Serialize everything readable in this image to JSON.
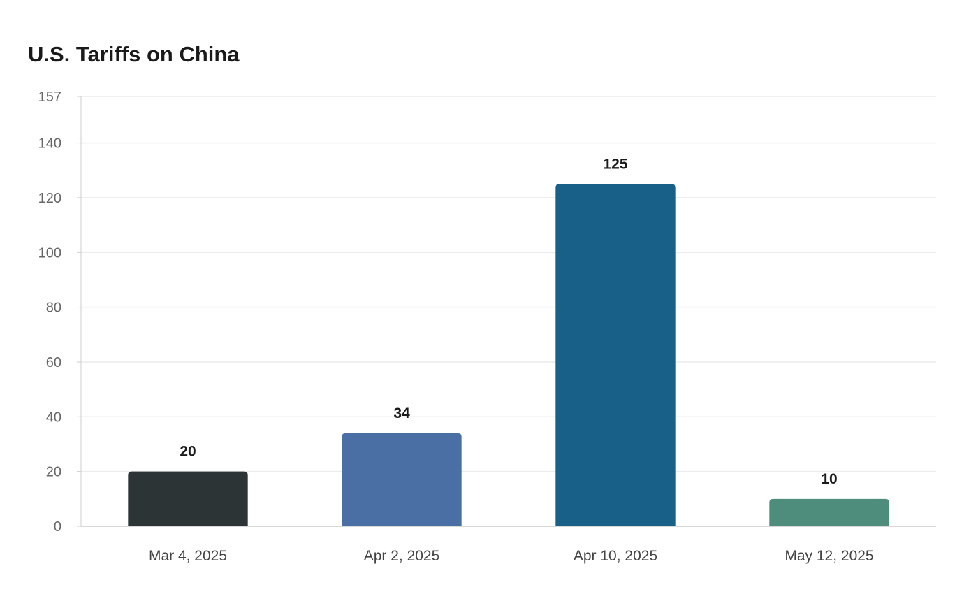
{
  "chart_data": {
    "type": "bar",
    "title": "U.S. Tariffs on China",
    "xlabel": "",
    "ylabel": "",
    "categories": [
      "Mar 4, 2025",
      "Apr 2, 2025",
      "Apr 10, 2025",
      "May 12, 2025"
    ],
    "values": [
      20,
      34,
      125,
      10
    ],
    "bar_colors": [
      "#2d3436",
      "#4a6fa5",
      "#186087",
      "#4e8c7b"
    ],
    "ylim": [
      0,
      157
    ],
    "yticks": [
      0,
      20,
      40,
      60,
      80,
      100,
      120,
      140,
      157
    ],
    "grid": true,
    "legend": "none",
    "data_labels": true
  }
}
